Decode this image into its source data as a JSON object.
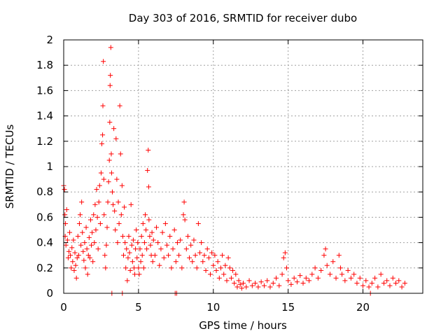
{
  "chart_data": {
    "type": "scatter",
    "title": "Day 303 of 2016, SRMTID for receiver dubo",
    "xlabel": "GPS time / hours",
    "ylabel": "SRMTID / TECUs",
    "xlim": [
      0,
      24
    ],
    "ylim": [
      0,
      2
    ],
    "grid": true,
    "marker": "+",
    "color": "#ff0000",
    "x_ticks": [
      0,
      5,
      10,
      15,
      20
    ],
    "x_tick_labels": [
      "0",
      "5",
      "10",
      "15",
      "20"
    ],
    "y_ticks": [
      0,
      0.2,
      0.4,
      0.6,
      0.8,
      1,
      1.2,
      1.4,
      1.6,
      1.8,
      2
    ],
    "y_tick_labels": [
      "0",
      "0.2",
      "0.4",
      "0.6",
      "0.8",
      "1",
      "1.2",
      "1.4",
      "1.6",
      "1.8",
      "2"
    ],
    "series": [
      {
        "name": "SRMTID",
        "points": [
          [
            0.0,
            0.85
          ],
          [
            0.05,
            0.82
          ],
          [
            0.08,
            0.62
          ],
          [
            0.1,
            0.45
          ],
          [
            0.12,
            0.55
          ],
          [
            0.15,
            0.38
          ],
          [
            0.2,
            0.66
          ],
          [
            0.25,
            0.42
          ],
          [
            0.3,
            0.28
          ],
          [
            0.35,
            0.33
          ],
          [
            0.4,
            0.48
          ],
          [
            0.45,
            0.3
          ],
          [
            0.5,
            0.2
          ],
          [
            0.55,
            0.36
          ],
          [
            0.6,
            0.25
          ],
          [
            0.65,
            0.42
          ],
          [
            0.7,
            0.18
          ],
          [
            0.75,
            0.32
          ],
          [
            0.8,
            0.22
          ],
          [
            0.85,
            0.12
          ],
          [
            0.9,
            0.28
          ],
          [
            0.95,
            0.45
          ],
          [
            1.0,
            0.3
          ],
          [
            1.05,
            0.55
          ],
          [
            1.1,
            0.62
          ],
          [
            1.15,
            0.38
          ],
          [
            1.2,
            0.72
          ],
          [
            1.25,
            0.48
          ],
          [
            1.3,
            0.33
          ],
          [
            1.35,
            0.26
          ],
          [
            1.4,
            0.4
          ],
          [
            1.45,
            0.2
          ],
          [
            1.5,
            0.52
          ],
          [
            1.55,
            0.35
          ],
          [
            1.6,
            0.15
          ],
          [
            1.65,
            0.3
          ],
          [
            1.7,
            0.44
          ],
          [
            1.75,
            0.28
          ],
          [
            1.8,
            0.58
          ],
          [
            1.85,
            0.38
          ],
          [
            1.9,
            0.48
          ],
          [
            1.95,
            0.25
          ],
          [
            2.0,
            0.62
          ],
          [
            2.05,
            0.4
          ],
          [
            2.1,
            0.7
          ],
          [
            2.15,
            0.5
          ],
          [
            2.2,
            0.82
          ],
          [
            2.25,
            0.6
          ],
          [
            2.3,
            0.35
          ],
          [
            2.35,
            0.72
          ],
          [
            2.4,
            0.85
          ],
          [
            2.45,
            0.55
          ],
          [
            2.5,
            0.95
          ],
          [
            2.55,
            1.18
          ],
          [
            2.6,
            1.25
          ],
          [
            2.62,
            1.48
          ],
          [
            2.65,
            1.83
          ],
          [
            2.68,
            0.9
          ],
          [
            2.7,
            0.62
          ],
          [
            2.75,
            0.3
          ],
          [
            2.8,
            0.2
          ],
          [
            2.85,
            0.38
          ],
          [
            2.9,
            0.52
          ],
          [
            2.95,
            0.72
          ],
          [
            3.0,
            0.88
          ],
          [
            3.05,
            1.05
          ],
          [
            3.08,
            1.35
          ],
          [
            3.1,
            1.64
          ],
          [
            3.12,
            1.72
          ],
          [
            3.15,
            1.94
          ],
          [
            3.18,
            1.1
          ],
          [
            3.2,
            0.95
          ],
          [
            3.22,
            0.0
          ],
          [
            3.25,
            0.8
          ],
          [
            3.3,
            0.7
          ],
          [
            3.35,
            1.3
          ],
          [
            3.4,
            0.65
          ],
          [
            3.45,
            0.5
          ],
          [
            3.5,
            1.22
          ],
          [
            3.55,
            0.9
          ],
          [
            3.6,
            0.4
          ],
          [
            3.65,
            0.72
          ],
          [
            3.7,
            0.55
          ],
          [
            3.75,
            1.48
          ],
          [
            3.8,
            1.1
          ],
          [
            3.85,
            0.62
          ],
          [
            3.9,
            0.85
          ],
          [
            3.92,
            0.0
          ],
          [
            3.95,
            0.45
          ],
          [
            4.0,
            0.3
          ],
          [
            4.05,
            0.68
          ],
          [
            4.1,
            0.4
          ],
          [
            4.15,
            0.2
          ],
          [
            4.2,
            0.35
          ],
          [
            4.25,
            0.1
          ],
          [
            4.3,
            0.28
          ],
          [
            4.35,
            0.45
          ],
          [
            4.4,
            0.32
          ],
          [
            4.45,
            0.18
          ],
          [
            4.5,
            0.7
          ],
          [
            4.55,
            0.38
          ],
          [
            4.6,
            0.25
          ],
          [
            4.65,
            0.42
          ],
          [
            4.7,
            0.2
          ],
          [
            4.75,
            0.15
          ],
          [
            4.8,
            0.35
          ],
          [
            4.85,
            0.5
          ],
          [
            4.9,
            0.28
          ],
          [
            4.95,
            0.4
          ],
          [
            5.0,
            0.2
          ],
          [
            5.05,
            0.15
          ],
          [
            5.1,
            0.35
          ],
          [
            5.15,
            0.25
          ],
          [
            5.2,
            0.45
          ],
          [
            5.25,
            0.3
          ],
          [
            5.3,
            0.55
          ],
          [
            5.35,
            0.2
          ],
          [
            5.4,
            0.4
          ],
          [
            5.45,
            0.62
          ],
          [
            5.5,
            0.5
          ],
          [
            5.55,
            0.35
          ],
          [
            5.6,
            0.97
          ],
          [
            5.65,
            1.13
          ],
          [
            5.68,
            0.84
          ],
          [
            5.7,
            0.58
          ],
          [
            5.75,
            0.45
          ],
          [
            5.8,
            0.38
          ],
          [
            5.85,
            0.3
          ],
          [
            5.9,
            0.48
          ],
          [
            5.95,
            0.25
          ],
          [
            6.0,
            0.42
          ],
          [
            6.1,
            0.3
          ],
          [
            6.2,
            0.52
          ],
          [
            6.3,
            0.4
          ],
          [
            6.4,
            0.22
          ],
          [
            6.5,
            0.35
          ],
          [
            6.6,
            0.48
          ],
          [
            6.7,
            0.28
          ],
          [
            6.8,
            0.55
          ],
          [
            6.9,
            0.38
          ],
          [
            7.0,
            0.3
          ],
          [
            7.1,
            0.45
          ],
          [
            7.2,
            0.2
          ],
          [
            7.3,
            0.35
          ],
          [
            7.4,
            0.5
          ],
          [
            7.45,
            0.0
          ],
          [
            7.5,
            0.25
          ],
          [
            7.55,
            0.0
          ],
          [
            7.6,
            0.4
          ],
          [
            7.7,
            0.3
          ],
          [
            7.8,
            0.42
          ],
          [
            7.9,
            0.2
          ],
          [
            8.0,
            0.62
          ],
          [
            8.05,
            0.72
          ],
          [
            8.1,
            0.58
          ],
          [
            8.2,
            0.35
          ],
          [
            8.3,
            0.45
          ],
          [
            8.4,
            0.28
          ],
          [
            8.5,
            0.38
          ],
          [
            8.6,
            0.25
          ],
          [
            8.7,
            0.42
          ],
          [
            8.8,
            0.3
          ],
          [
            8.9,
            0.2
          ],
          [
            9.0,
            0.55
          ],
          [
            9.1,
            0.32
          ],
          [
            9.2,
            0.4
          ],
          [
            9.3,
            0.25
          ],
          [
            9.4,
            0.3
          ],
          [
            9.5,
            0.18
          ],
          [
            9.6,
            0.35
          ],
          [
            9.7,
            0.28
          ],
          [
            9.8,
            0.15
          ],
          [
            9.9,
            0.32
          ],
          [
            10.0,
            0.22
          ],
          [
            10.1,
            0.3
          ],
          [
            10.2,
            0.18
          ],
          [
            10.3,
            0.25
          ],
          [
            10.4,
            0.12
          ],
          [
            10.5,
            0.2
          ],
          [
            10.6,
            0.3
          ],
          [
            10.7,
            0.15
          ],
          [
            10.8,
            0.22
          ],
          [
            10.9,
            0.1
          ],
          [
            11.0,
            0.28
          ],
          [
            11.1,
            0.2
          ],
          [
            11.2,
            0.12
          ],
          [
            11.3,
            0.18
          ],
          [
            11.4,
            0.08
          ],
          [
            11.5,
            0.15
          ],
          [
            11.6,
            0.05
          ],
          [
            11.7,
            0.1
          ],
          [
            11.8,
            0.07
          ],
          [
            11.9,
            0.04
          ],
          [
            12.0,
            0.08
          ],
          [
            12.2,
            0.05
          ],
          [
            12.4,
            0.1
          ],
          [
            12.6,
            0.06
          ],
          [
            12.8,
            0.08
          ],
          [
            13.0,
            0.05
          ],
          [
            13.2,
            0.09
          ],
          [
            13.4,
            0.06
          ],
          [
            13.6,
            0.1
          ],
          [
            13.8,
            0.05
          ],
          [
            14.0,
            0.08
          ],
          [
            14.2,
            0.12
          ],
          [
            14.4,
            0.06
          ],
          [
            14.6,
            0.15
          ],
          [
            14.7,
            0.28
          ],
          [
            14.8,
            0.32
          ],
          [
            14.9,
            0.2
          ],
          [
            15.0,
            0.1
          ],
          [
            15.2,
            0.07
          ],
          [
            15.4,
            0.12
          ],
          [
            15.6,
            0.09
          ],
          [
            15.8,
            0.14
          ],
          [
            16.0,
            0.08
          ],
          [
            16.2,
            0.12
          ],
          [
            16.4,
            0.1
          ],
          [
            16.6,
            0.15
          ],
          [
            16.8,
            0.2
          ],
          [
            17.0,
            0.12
          ],
          [
            17.2,
            0.18
          ],
          [
            17.4,
            0.3
          ],
          [
            17.5,
            0.35
          ],
          [
            17.6,
            0.22
          ],
          [
            17.8,
            0.15
          ],
          [
            18.0,
            0.25
          ],
          [
            18.2,
            0.12
          ],
          [
            18.4,
            0.3
          ],
          [
            18.5,
            0.2
          ],
          [
            18.6,
            0.15
          ],
          [
            18.8,
            0.1
          ],
          [
            19.0,
            0.18
          ],
          [
            19.2,
            0.12
          ],
          [
            19.4,
            0.15
          ],
          [
            19.6,
            0.08
          ],
          [
            19.8,
            0.12
          ],
          [
            20.0,
            0.06
          ],
          [
            20.2,
            0.1
          ],
          [
            20.4,
            0.05
          ],
          [
            20.5,
            0.0
          ],
          [
            20.6,
            0.08
          ],
          [
            20.8,
            0.12
          ],
          [
            21.0,
            0.05
          ],
          [
            21.2,
            0.15
          ],
          [
            21.4,
            0.08
          ],
          [
            21.6,
            0.1
          ],
          [
            21.8,
            0.06
          ],
          [
            22.0,
            0.12
          ],
          [
            22.2,
            0.08
          ],
          [
            22.4,
            0.1
          ],
          [
            22.6,
            0.05
          ],
          [
            22.8,
            0.08
          ]
        ]
      }
    ]
  }
}
